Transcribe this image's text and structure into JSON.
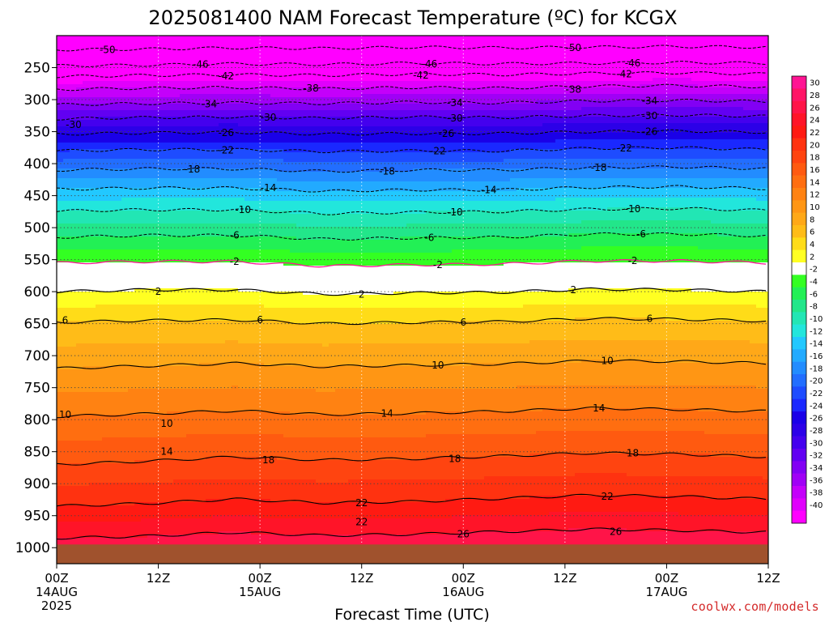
{
  "chart_data": {
    "type": "heatmap",
    "title": "2025081400 NAM Forecast Temperature (ºC) for KCGX",
    "xlabel": "Forecast Time (UTC)",
    "ylabel": "",
    "x_ticks": [
      {
        "hour": 0,
        "label": "00Z",
        "sub": "14AUG",
        "sub2": "2025"
      },
      {
        "hour": 12,
        "label": "12Z",
        "sub": "",
        "sub2": ""
      },
      {
        "hour": 24,
        "label": "00Z",
        "sub": "15AUG",
        "sub2": ""
      },
      {
        "hour": 36,
        "label": "12Z",
        "sub": "",
        "sub2": ""
      },
      {
        "hour": 48,
        "label": "00Z",
        "sub": "16AUG",
        "sub2": ""
      },
      {
        "hour": 60,
        "label": "12Z",
        "sub": "",
        "sub2": ""
      },
      {
        "hour": 72,
        "label": "00Z",
        "sub": "17AUG",
        "sub2": ""
      },
      {
        "hour": 84,
        "label": "12Z",
        "sub": "",
        "sub2": ""
      }
    ],
    "xlim": [
      0,
      84
    ],
    "ylim": [
      1025,
      200
    ],
    "y_ticks": [
      250,
      300,
      350,
      400,
      450,
      500,
      550,
      600,
      650,
      700,
      750,
      800,
      850,
      900,
      950,
      1000
    ],
    "ground_pressure": 995,
    "colorbar": {
      "labels": [
        "30",
        "28",
        "26",
        "24",
        "22",
        "20",
        "18",
        "16",
        "14",
        "12",
        "10",
        "8",
        "6",
        "4",
        "2",
        "-2",
        "-4",
        "-6",
        "-8",
        "-10",
        "-12",
        "-14",
        "-16",
        "-18",
        "-20",
        "-22",
        "-24",
        "-26",
        "-28",
        "-30",
        "-32",
        "-34",
        "-36",
        "-38",
        "-40"
      ],
      "colors": [
        "#ff1493",
        "#ff1466",
        "#ff1448",
        "#ff1428",
        "#ff1a12",
        "#ff3210",
        "#ff4410",
        "#ff5a10",
        "#ff6e10",
        "#ff8212",
        "#ff9614",
        "#ffa818",
        "#ffbc18",
        "#ffdc18",
        "#ffff22",
        "#ffffff",
        "#33ff22",
        "#22f055",
        "#22e68a",
        "#22e6b4",
        "#22e6dc",
        "#22c8ff",
        "#22aaff",
        "#228cff",
        "#226eff",
        "#1e4cff",
        "#1a28ff",
        "#1a00e8",
        "#2c00e8",
        "#4400ee",
        "#6200f2",
        "#8200f4",
        "#a000f6",
        "#c400fa",
        "#e000fc",
        "#ff00ff"
      ]
    },
    "series": [
      {
        "value": -50,
        "pressure": [
          222,
          221,
          219,
          220,
          218,
          219,
          218,
          217,
          218
        ]
      },
      {
        "value": -46,
        "pressure": [
          247,
          246,
          244,
          245,
          243,
          244,
          243,
          242,
          243
        ]
      },
      {
        "value": -42,
        "pressure": [
          264,
          262,
          261,
          262,
          260,
          261,
          259,
          258,
          260
        ]
      },
      {
        "value": -38,
        "pressure": [
          284,
          282,
          281,
          283,
          281,
          282,
          279,
          278,
          280
        ]
      },
      {
        "value": -34,
        "pressure": [
          308,
          306,
          305,
          306,
          304,
          305,
          302,
          301,
          303
        ]
      },
      {
        "value": -30,
        "pressure": [
          330,
          328,
          327,
          329,
          327,
          328,
          325,
          324,
          326
        ]
      },
      {
        "value": -26,
        "pressure": [
          354,
          352,
          351,
          354,
          353,
          353,
          350,
          349,
          351
        ]
      },
      {
        "value": -22,
        "pressure": [
          380,
          378,
          378,
          381,
          380,
          380,
          376,
          375,
          378
        ]
      },
      {
        "value": -18,
        "pressure": [
          410,
          408,
          408,
          412,
          410,
          410,
          406,
          405,
          408
        ]
      },
      {
        "value": -14,
        "pressure": [
          440,
          438,
          438,
          443,
          441,
          441,
          437,
          436,
          439
        ]
      },
      {
        "value": -10,
        "pressure": [
          474,
          472,
          472,
          478,
          476,
          475,
          471,
          470,
          473
        ]
      },
      {
        "value": -6,
        "pressure": [
          515,
          512,
          512,
          518,
          516,
          515,
          510,
          510,
          513
        ]
      },
      {
        "value": -2,
        "pressure": [
          555,
          553,
          553,
          560,
          558,
          557,
          552,
          552,
          555
        ]
      },
      {
        "value": 2,
        "pressure": [
          600,
          597,
          597,
          604,
          602,
          601,
          596,
          597,
          600
        ]
      },
      {
        "value": 6,
        "pressure": [
          648,
          645,
          644,
          650,
          648,
          647,
          642,
          643,
          646
        ]
      },
      {
        "value": 10,
        "pressure": [
          720,
          716,
          712,
          717,
          715,
          713,
          708,
          709,
          712
        ]
      },
      {
        "value": 14,
        "pressure": [
          795,
          791,
          786,
          792,
          790,
          787,
          782,
          784,
          787
        ]
      },
      {
        "value": 18,
        "pressure": [
          870,
          865,
          858,
          863,
          861,
          857,
          852,
          854,
          858
        ]
      },
      {
        "value": 22,
        "pressure": [
          935,
          931,
          924,
          930,
          928,
          923,
          918,
          920,
          924
        ]
      },
      {
        "value": 26,
        "pressure": [
          985,
          982,
          976,
          981,
          979,
          975,
          971,
          973,
          976
        ]
      }
    ],
    "contour_labels": [
      {
        "text": "-50",
        "hour": 6,
        "pressure": 222
      },
      {
        "text": "-50",
        "hour": 61,
        "pressure": 219
      },
      {
        "text": "-46",
        "hour": 17,
        "pressure": 245
      },
      {
        "text": "-46",
        "hour": 44,
        "pressure": 244
      },
      {
        "text": "-46",
        "hour": 68,
        "pressure": 243
      },
      {
        "text": "-42",
        "hour": 20,
        "pressure": 263
      },
      {
        "text": "-42",
        "hour": 43,
        "pressure": 262
      },
      {
        "text": "-42",
        "hour": 67,
        "pressure": 260
      },
      {
        "text": "-38",
        "hour": 30,
        "pressure": 282
      },
      {
        "text": "-38",
        "hour": 61,
        "pressure": 284
      },
      {
        "text": "-34",
        "hour": 18,
        "pressure": 307
      },
      {
        "text": "-34",
        "hour": 47,
        "pressure": 305
      },
      {
        "text": "-34",
        "hour": 70,
        "pressure": 302
      },
      {
        "text": "-30",
        "hour": 2,
        "pressure": 339
      },
      {
        "text": "-30",
        "hour": 25,
        "pressure": 328
      },
      {
        "text": "-30",
        "hour": 47,
        "pressure": 329
      },
      {
        "text": "-30",
        "hour": 70,
        "pressure": 325
      },
      {
        "text": "-26",
        "hour": 20,
        "pressure": 352
      },
      {
        "text": "-26",
        "hour": 46,
        "pressure": 353
      },
      {
        "text": "-26",
        "hour": 70,
        "pressure": 350
      },
      {
        "text": "-22",
        "hour": 20,
        "pressure": 379
      },
      {
        "text": "-22",
        "hour": 45,
        "pressure": 380
      },
      {
        "text": "-22",
        "hour": 67,
        "pressure": 376
      },
      {
        "text": "-18",
        "hour": 16,
        "pressure": 409
      },
      {
        "text": "-18",
        "hour": 39,
        "pressure": 412
      },
      {
        "text": "-18",
        "hour": 64,
        "pressure": 406
      },
      {
        "text": "-14",
        "hour": 25,
        "pressure": 438
      },
      {
        "text": "-14",
        "hour": 51,
        "pressure": 441
      },
      {
        "text": "-10",
        "hour": 22,
        "pressure": 472
      },
      {
        "text": "-10",
        "hour": 47,
        "pressure": 476
      },
      {
        "text": "-10",
        "hour": 68,
        "pressure": 471
      },
      {
        "text": "-6",
        "hour": 21,
        "pressure": 512
      },
      {
        "text": "-6",
        "hour": 44,
        "pressure": 516
      },
      {
        "text": "-6",
        "hour": 69,
        "pressure": 510
      },
      {
        "text": "-2",
        "hour": 21,
        "pressure": 553
      },
      {
        "text": "-2",
        "hour": 45,
        "pressure": 558
      },
      {
        "text": "-2",
        "hour": 68,
        "pressure": 552
      },
      {
        "text": "2",
        "hour": 12,
        "pressure": 600
      },
      {
        "text": "2",
        "hour": 36,
        "pressure": 604
      },
      {
        "text": "2",
        "hour": 61,
        "pressure": 597
      },
      {
        "text": "6",
        "hour": 1,
        "pressure": 645
      },
      {
        "text": "6",
        "hour": 24,
        "pressure": 644
      },
      {
        "text": "6",
        "hour": 48,
        "pressure": 648
      },
      {
        "text": "6",
        "hour": 70,
        "pressure": 642
      },
      {
        "text": "10",
        "hour": 1,
        "pressure": 792
      },
      {
        "text": "10",
        "hour": 13,
        "pressure": 806
      },
      {
        "text": "10",
        "hour": 45,
        "pressure": 715
      },
      {
        "text": "10",
        "hour": 65,
        "pressure": 708
      },
      {
        "text": "14",
        "hour": 13,
        "pressure": 850
      },
      {
        "text": "14",
        "hour": 39,
        "pressure": 790
      },
      {
        "text": "14",
        "hour": 64,
        "pressure": 782
      },
      {
        "text": "18",
        "hour": 25,
        "pressure": 863
      },
      {
        "text": "18",
        "hour": 47,
        "pressure": 861
      },
      {
        "text": "18",
        "hour": 68,
        "pressure": 852
      },
      {
        "text": "22",
        "hour": 36,
        "pressure": 930
      },
      {
        "text": "22",
        "hour": 36,
        "pressure": 960
      },
      {
        "text": "22",
        "hour": 65,
        "pressure": 920
      },
      {
        "text": "26",
        "hour": 48,
        "pressure": 979
      },
      {
        "text": "26",
        "hour": 66,
        "pressure": 975
      }
    ]
  },
  "credit": "coolwx.com/models"
}
